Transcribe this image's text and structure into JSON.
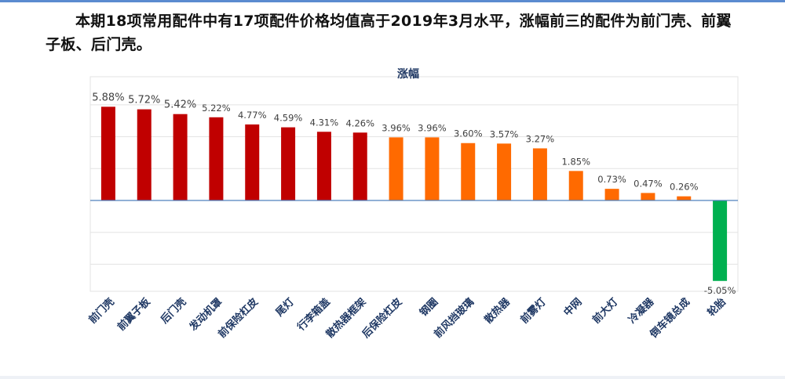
{
  "headline": "本期18项常用配件中有17项配件价格均值高于2019年3月水平，涨幅前三的配件为前门壳、前翼子板、后门壳。",
  "chart_data": {
    "type": "bar",
    "title": "涨幅",
    "xlabel": "",
    "ylabel": "",
    "ylim": [
      -6,
      8
    ],
    "grid": true,
    "legend": "none",
    "categories": [
      "前门壳",
      "前翼子板",
      "后门壳",
      "发动机罩",
      "前保险杠皮",
      "尾灯",
      "行李箱盖",
      "散热器框架",
      "后保险杠皮",
      "钢圈",
      "前风挡玻璃",
      "散热器",
      "前雾灯",
      "中网",
      "前大灯",
      "冷凝器",
      "倒车镜总成",
      "轮胎"
    ],
    "values": [
      5.88,
      5.72,
      5.42,
      5.22,
      4.77,
      4.59,
      4.31,
      4.26,
      3.96,
      3.96,
      3.6,
      3.57,
      3.27,
      1.85,
      0.73,
      0.47,
      0.26,
      -5.05
    ],
    "value_labels": [
      "5.88%",
      "5.72%",
      "5.42%",
      "5.22%",
      "4.77%",
      "4.59%",
      "4.31%",
      "4.26%",
      "3.96%",
      "3.96%",
      "3.60%",
      "3.57%",
      "3.27%",
      "1.85%",
      "0.73%",
      "0.47%",
      "0.26%",
      "-5.05%"
    ],
    "colors": {
      "top": "#c00000",
      "mid": "#ff6a00",
      "negative": "#00b050",
      "title": "#1f3864",
      "axis_label": "#1f3864",
      "zero_line": "#4f81bd",
      "grid": "#e3e3e3"
    }
  }
}
